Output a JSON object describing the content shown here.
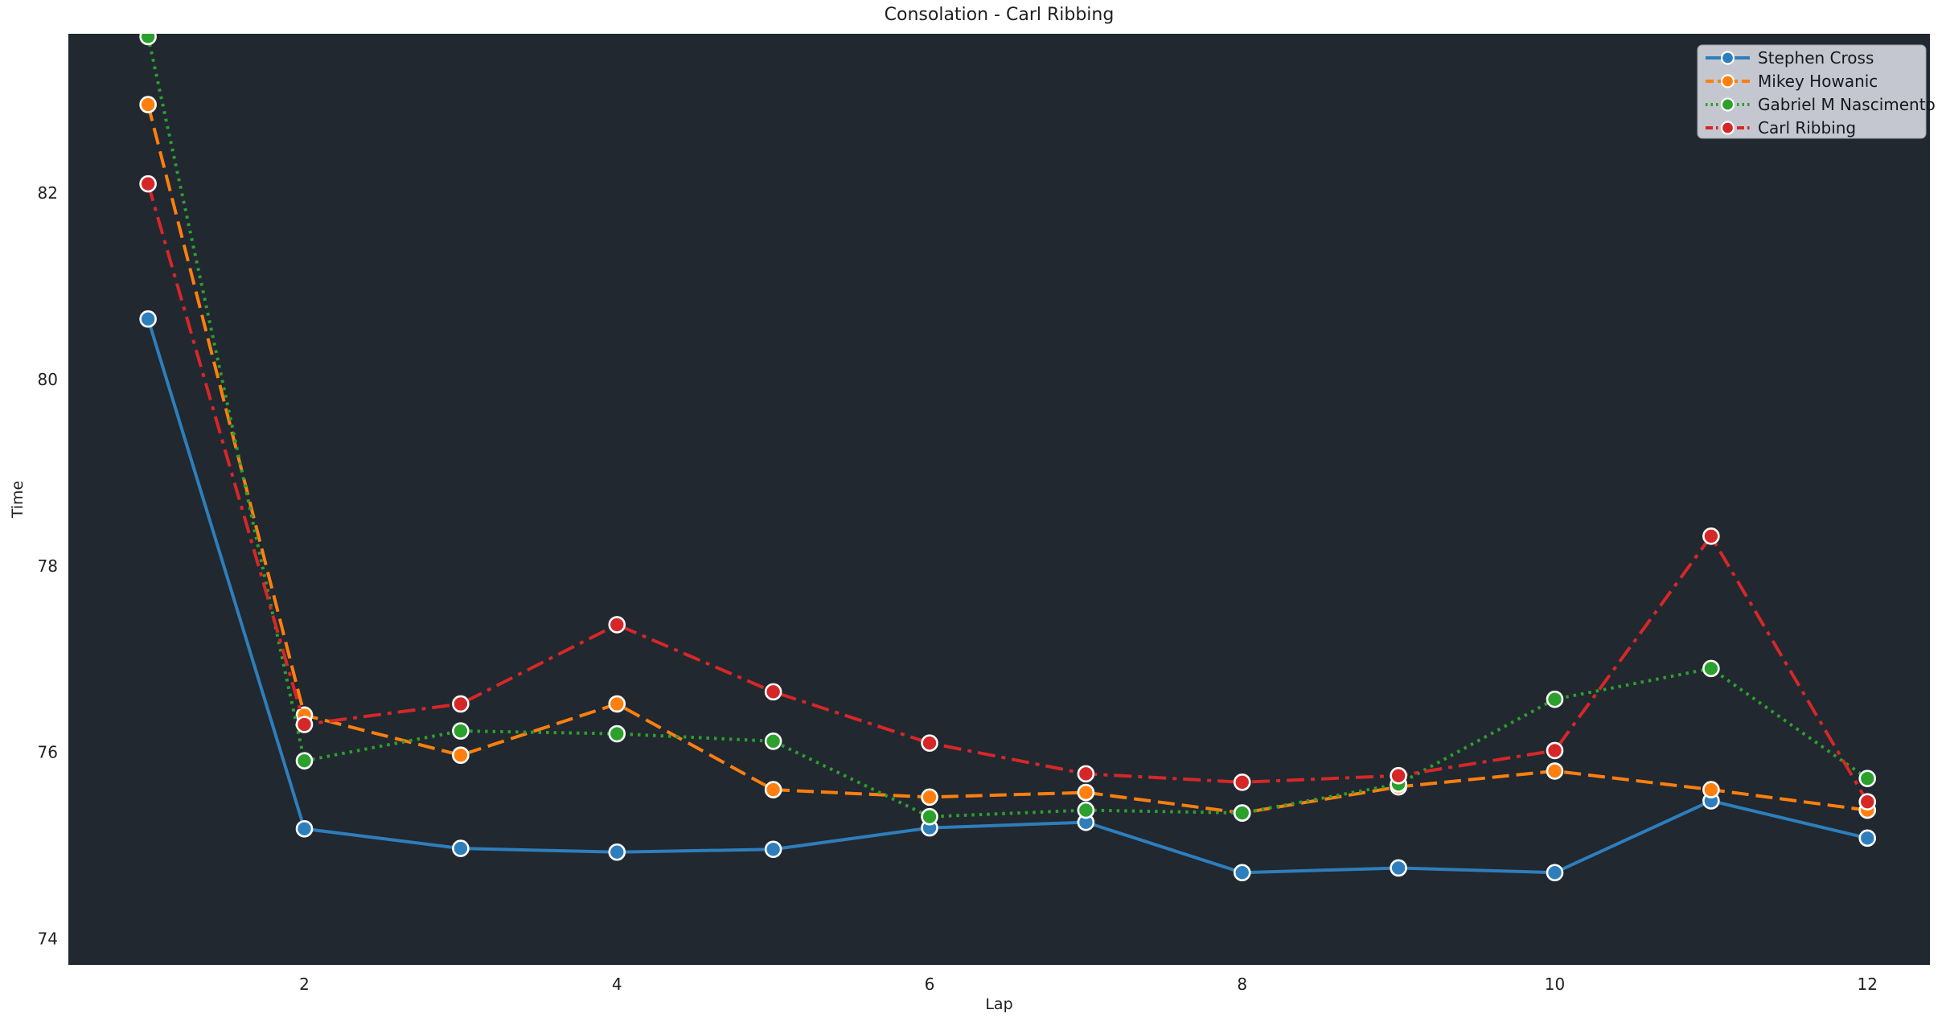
{
  "figure": {
    "background": "#ffffff",
    "plot_background": "#212830",
    "text_color": "#1f1f1f",
    "marker_edge_color": "#ffffff",
    "legend": {
      "background": "#cdd0d8",
      "border": "#9fa3ac",
      "text_color": "#16181c"
    }
  },
  "chart_data": {
    "type": "line",
    "title": "Consolation - Carl Ribbing",
    "xlabel": "Lap",
    "ylabel": "Time",
    "x": [
      1,
      2,
      3,
      4,
      5,
      6,
      7,
      8,
      9,
      10,
      11,
      12
    ],
    "xticks": [
      2,
      4,
      6,
      8,
      10,
      12
    ],
    "yticks": [
      74,
      76,
      78,
      80,
      82
    ],
    "xlim": [
      0.49,
      12.4
    ],
    "ylim": [
      73.72,
      83.71
    ],
    "grid": false,
    "legend_position": "upper-right",
    "series": [
      {
        "name": "Stephen Cross",
        "color": "#2e7ebc",
        "line_style": "solid",
        "values": [
          80.65,
          75.18,
          74.97,
          74.93,
          74.96,
          75.19,
          75.25,
          74.71,
          74.76,
          74.71,
          75.48,
          75.08
        ]
      },
      {
        "name": "Mikey Howanic",
        "color": "#ff7f0e",
        "line_style": "dashed",
        "values": [
          82.95,
          76.4,
          75.97,
          76.52,
          75.6,
          75.52,
          75.57,
          75.35,
          75.63,
          75.8,
          75.6,
          75.38
        ]
      },
      {
        "name": "Gabriel M Nascimento",
        "color": "#2ca02c",
        "line_style": "dotted",
        "values": [
          83.68,
          75.91,
          76.23,
          76.2,
          76.12,
          75.31,
          75.38,
          75.35,
          75.66,
          76.57,
          76.9,
          75.72
        ]
      },
      {
        "name": "Carl Ribbing",
        "color": "#d62728",
        "line_style": "dashdot",
        "values": [
          82.1,
          76.3,
          76.52,
          77.37,
          76.65,
          76.1,
          75.77,
          75.68,
          75.75,
          76.02,
          78.32,
          75.47
        ]
      }
    ]
  }
}
